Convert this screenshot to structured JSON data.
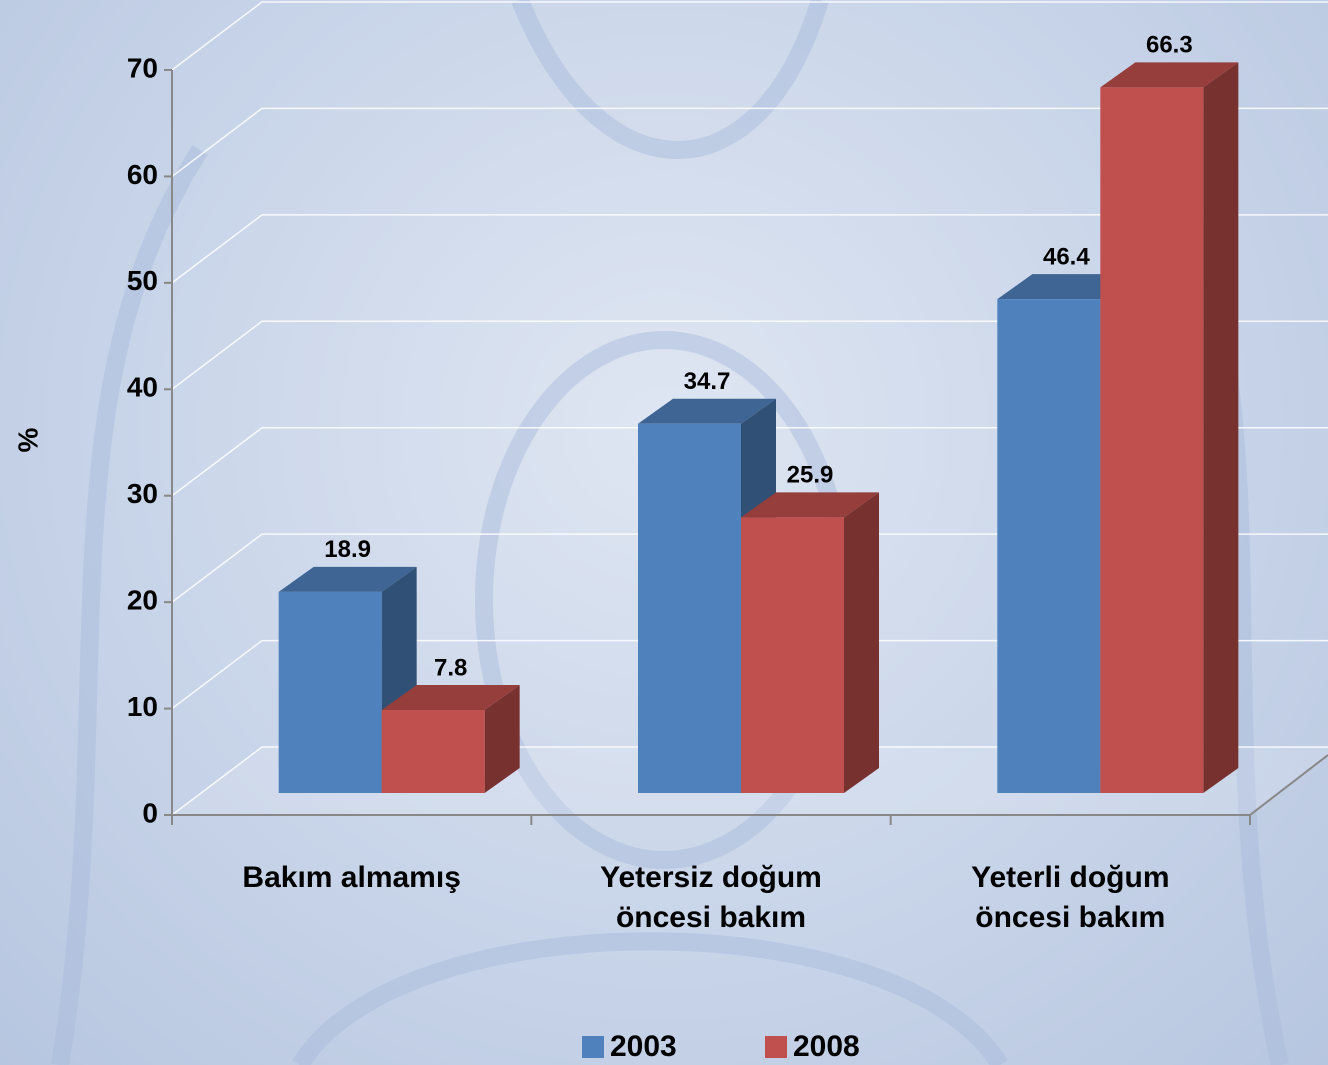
{
  "chart_data": {
    "type": "bar3d",
    "ylabel": "%",
    "categories": [
      "Bakım almamış",
      "Yetersiz doğum öncesi bakım",
      "Yeterli doğum öncesi bakım"
    ],
    "series": [
      {
        "name": "2003",
        "color": "#4f81bd",
        "values": [
          18.9,
          34.7,
          46.4
        ]
      },
      {
        "name": "2008",
        "color": "#c0504d",
        "values": [
          7.8,
          25.9,
          66.3
        ]
      }
    ],
    "ylim": [
      0,
      70
    ],
    "yticks": [
      0,
      10,
      20,
      30,
      40,
      50,
      60,
      70
    ],
    "grid": true,
    "legend": "bottom"
  }
}
